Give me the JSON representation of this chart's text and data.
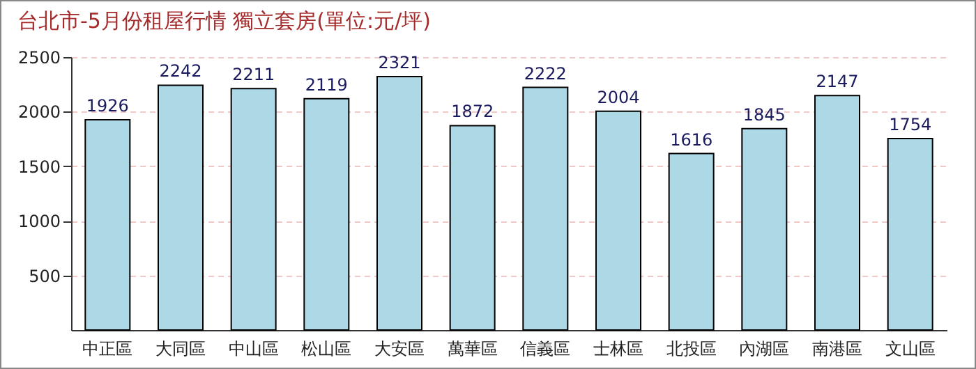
{
  "chart_data": {
    "type": "bar",
    "title": "台北市-5月份租屋行情 獨立套房(單位:元/坪)",
    "categories": [
      "中正區",
      "大同區",
      "中山區",
      "松山區",
      "大安區",
      "萬華區",
      "信義區",
      "士林區",
      "北投區",
      "內湖區",
      "南港區",
      "文山區"
    ],
    "values": [
      1926,
      2242,
      2211,
      2119,
      2321,
      1872,
      2222,
      2004,
      1616,
      1845,
      2147,
      1754
    ],
    "color": "#add8e6",
    "ylim": [
      0,
      2500
    ],
    "yticks": [
      500,
      1000,
      1500,
      2000,
      2500
    ],
    "grid": "y",
    "data_labels": true
  }
}
